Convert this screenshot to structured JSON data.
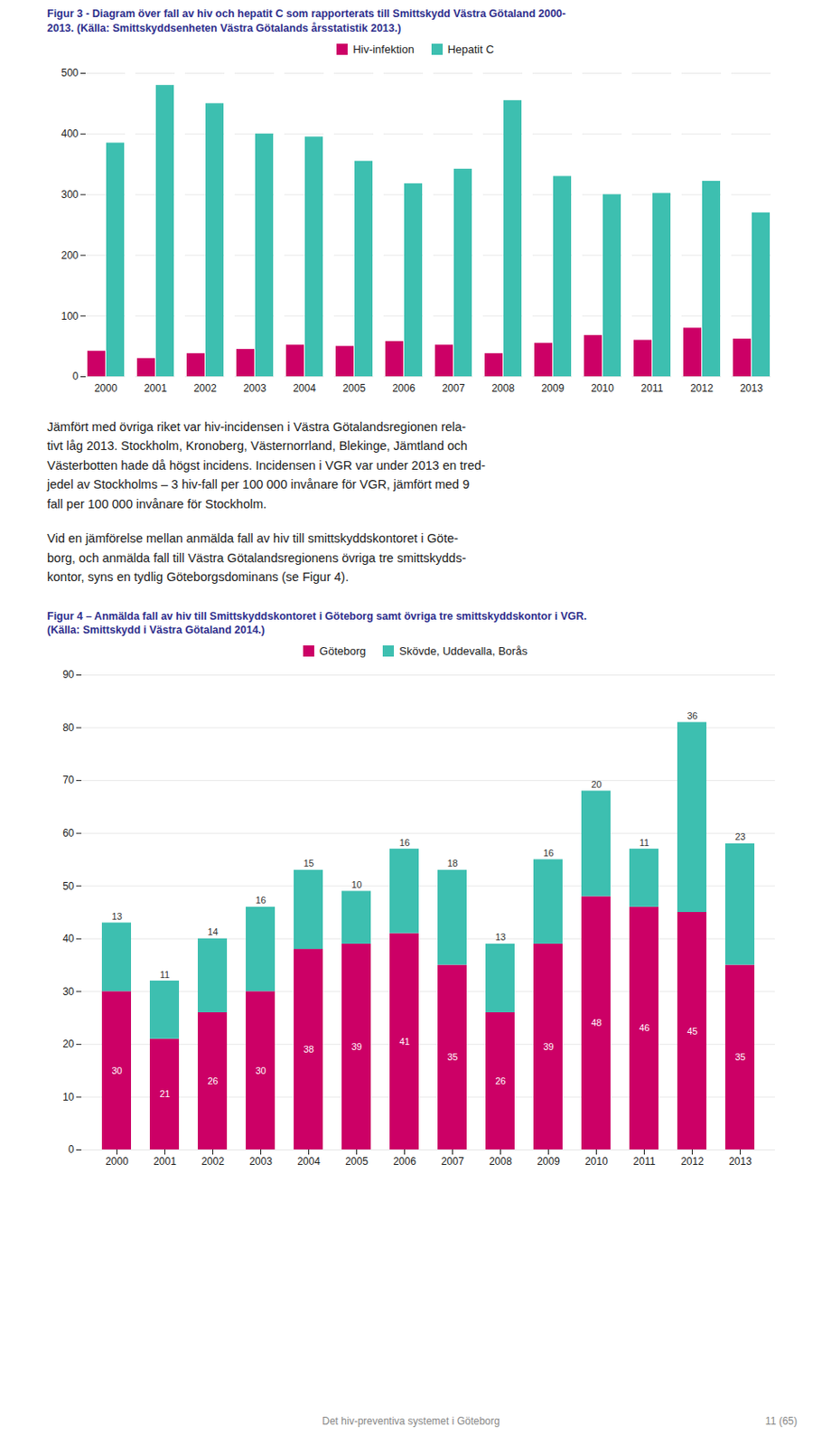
{
  "chart_data": [
    {
      "type": "bar",
      "title": "Figur 3 - Diagram över fall av hiv och hepatit C som rapporterats till Smittskydd Västra Götaland 2000-\n2013. (Källa: Smittskyddsenheten Västra Götalands årsstatistik 2013.)",
      "categories": [
        "2000",
        "2001",
        "2002",
        "2003",
        "2004",
        "2005",
        "2006",
        "2007",
        "2008",
        "2009",
        "2010",
        "2011",
        "2012",
        "2013"
      ],
      "series": [
        {
          "name": "Hiv-infektion",
          "color": "#cc0066",
          "values": [
            42,
            30,
            38,
            45,
            52,
            50,
            58,
            52,
            38,
            55,
            68,
            60,
            80,
            62
          ]
        },
        {
          "name": "Hepatit C",
          "color": "#3dbfb0",
          "values": [
            385,
            480,
            450,
            400,
            395,
            355,
            318,
            342,
            455,
            330,
            300,
            302,
            322,
            270
          ]
        }
      ],
      "ylim": [
        0,
        500
      ],
      "yticks": [
        0,
        100,
        200,
        300,
        400,
        500
      ],
      "grid": true,
      "legend": "top"
    },
    {
      "type": "bar",
      "title": "Figur 4 – Anmälda fall av hiv till Smittskyddskontoret i Göteborg samt övriga tre smittskyddskontor i VGR.\n(Källa: Smittskydd i Västra Götaland 2014.)",
      "categories": [
        "2000",
        "2001",
        "2002",
        "2003",
        "2004",
        "2005",
        "2006",
        "2007",
        "2008",
        "2009",
        "2010",
        "2011",
        "2012",
        "2013"
      ],
      "series": [
        {
          "name": "Göteborg",
          "color": "#cc0066",
          "values": [
            30,
            21,
            26,
            30,
            38,
            39,
            41,
            35,
            26,
            39,
            48,
            46,
            45,
            35
          ]
        },
        {
          "name": "Skövde, Uddevalla, Borås",
          "color": "#3dbfb0",
          "values": [
            13,
            11,
            14,
            16,
            15,
            10,
            16,
            18,
            13,
            16,
            20,
            11,
            36,
            23
          ]
        }
      ],
      "stacked": true,
      "data_labels": true,
      "ylim": [
        0,
        90
      ],
      "yticks": [
        0,
        10,
        20,
        30,
        40,
        50,
        60,
        70,
        80,
        90
      ],
      "grid": true,
      "legend": "top"
    }
  ],
  "paragraphs": [
    "Jämfört med övriga riket var hiv-incidensen i Västra Götalandsregionen rela-\ntivt låg 2013. Stockholm, Kronoberg, Västernorrland, Blekinge, Jämtland och\nVästerbotten hade då högst incidens. Incidensen i VGR var under 2013 en tred-\njedel av Stockholms – 3 hiv-fall per 100 000 invånare för VGR, jämfört med 9\nfall per 100 000 invånare för Stockholm.",
    "Vid en jämförelse mellan anmälda fall av hiv till smittskyddskontoret i Göte-\nborg, och anmälda fall till Västra Götalandsregionens övriga tre smittskydds-\nkontor, syns en tydlig Göteborgsdominans (se Figur 4)."
  ],
  "footer": "Det hiv-preventiva systemet i Göteborg",
  "page": "11 (65)"
}
